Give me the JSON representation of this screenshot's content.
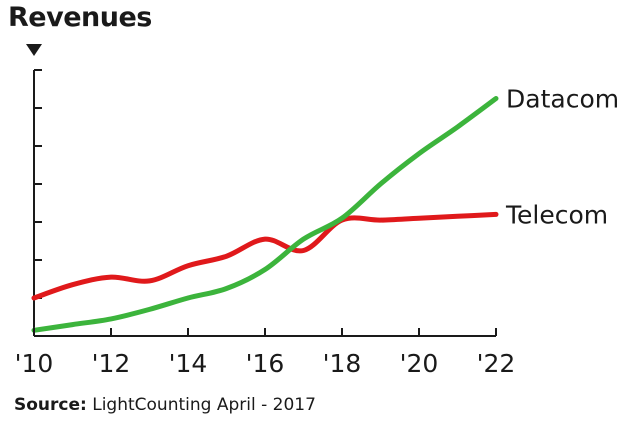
{
  "chart_data": {
    "type": "line",
    "title": "Revenues",
    "x": [
      2010,
      2011,
      2012,
      2013,
      2014,
      2015,
      2016,
      2017,
      2018,
      2019,
      2020,
      2021,
      2022
    ],
    "xtick_labels": [
      "'10",
      "'12",
      "'14",
      "'16",
      "'18",
      "'20",
      "'22"
    ],
    "xtick_values": [
      2010,
      2012,
      2014,
      2016,
      2018,
      2020,
      2022
    ],
    "xlim": [
      2010,
      2022
    ],
    "ylim": [
      0,
      7
    ],
    "yticks": [
      1,
      2,
      3,
      4,
      5,
      6,
      7
    ],
    "ytick_labels_shown": false,
    "grid": false,
    "series": [
      {
        "name": "Telecom",
        "color": "#e0191b",
        "values": [
          1.0,
          1.35,
          1.55,
          1.45,
          1.85,
          2.1,
          2.55,
          2.25,
          3.05,
          3.05,
          3.1,
          3.15,
          3.2
        ]
      },
      {
        "name": "Datacom",
        "color": "#3cb43c",
        "values": [
          0.15,
          0.3,
          0.45,
          0.7,
          1.0,
          1.25,
          1.75,
          2.55,
          3.1,
          4.0,
          4.8,
          5.5,
          6.25
        ]
      }
    ]
  },
  "labels": {
    "title": "Revenues",
    "source_prefix": "Source:",
    "source_text": " LightCounting April - 2017"
  },
  "colors": {
    "axis": "#1a1a1a",
    "telecom": "#e0191b",
    "datacom": "#3cb43c"
  }
}
